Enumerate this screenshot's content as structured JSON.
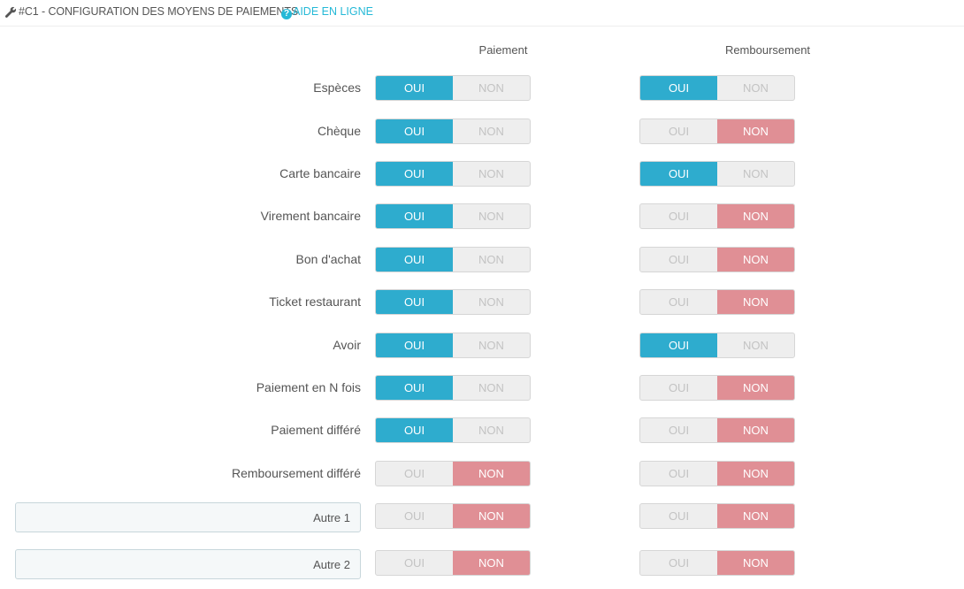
{
  "header": {
    "title": "#C1 - CONFIGURATION DES MOYENS DE PAIEMENTS",
    "help_label": "AIDE EN LIGNE",
    "help_icon": "question-circle-icon",
    "wrench_icon": "wrench-icon"
  },
  "columns": {
    "payment": "Paiement",
    "refund": "Remboursement"
  },
  "switch_labels": {
    "yes": "OUI",
    "no": "NON"
  },
  "colors": {
    "accent_on": "#2eacce",
    "accent_off": "#e08f95",
    "help_link": "#25b9d7"
  },
  "rows": [
    {
      "label": "Espèces",
      "payment": "OUI",
      "refund": "OUI"
    },
    {
      "label": "Chèque",
      "payment": "OUI",
      "refund": "NON"
    },
    {
      "label": "Carte bancaire",
      "payment": "OUI",
      "refund": "OUI"
    },
    {
      "label": "Virement bancaire",
      "payment": "OUI",
      "refund": "NON"
    },
    {
      "label": "Bon d'achat",
      "payment": "OUI",
      "refund": "NON"
    },
    {
      "label": "Ticket restaurant",
      "payment": "OUI",
      "refund": "NON"
    },
    {
      "label": "Avoir",
      "payment": "OUI",
      "refund": "OUI"
    },
    {
      "label": "Paiement en N fois",
      "payment": "OUI",
      "refund": "NON"
    },
    {
      "label": "Paiement différé",
      "payment": "OUI",
      "refund": "NON"
    },
    {
      "label": "Remboursement différé",
      "payment": "NON",
      "refund": "NON"
    }
  ],
  "custom_rows": [
    {
      "value": "Autre 1",
      "payment": "NON",
      "refund": "NON"
    },
    {
      "value": "Autre 2",
      "payment": "NON",
      "refund": "NON"
    }
  ]
}
